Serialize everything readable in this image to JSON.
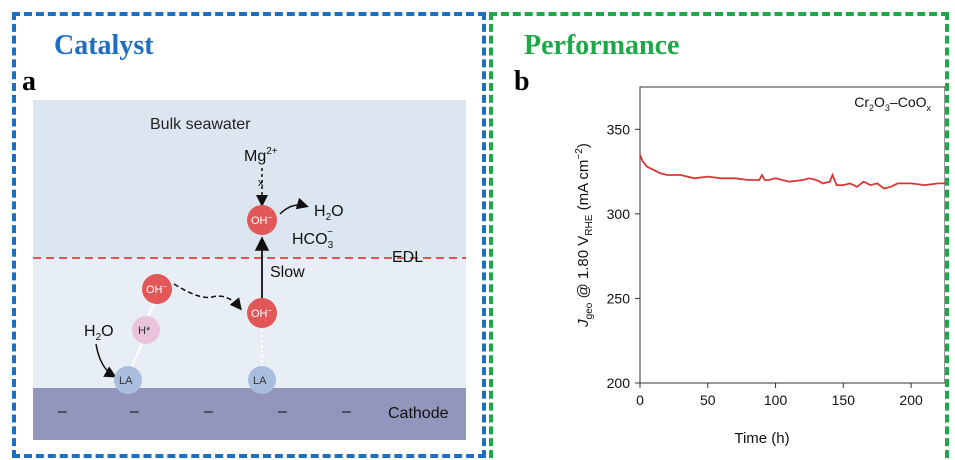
{
  "colors": {
    "catalyst_border": "#1f6fc0",
    "performance_border": "#1fa84a",
    "seawater_bg": "#dce6f0",
    "edl_bg": "#e8eef5",
    "cathode_fill": "#9296bd",
    "oh_ball": "#e25757",
    "h_ball": "#e9c2dc",
    "la_ball": "#a9bedf",
    "edl_line": "#e05555",
    "line_series": "#d63838"
  },
  "catalyst": {
    "heading": "Catalyst",
    "letter": "a",
    "bulk_label": "Bulk seawater",
    "mg_label": "Mg",
    "mg_sup": "2+",
    "blocked_mark": "x",
    "oh_label": "OH",
    "oh_sup": "−",
    "h2o_product": "H",
    "h2o_product_sub": "2",
    "h2o_product_tail": "O",
    "hco3_base": "HCO",
    "hco3_sub": "3",
    "hco3_sup": "−",
    "edl_label": "EDL",
    "slow_label": "Slow",
    "h2o_reactant": "H",
    "h2o_reactant_sub": "2",
    "h2o_reactant_tail": "O",
    "h_label": "H*",
    "la_label": "LA",
    "cathode_label": "Cathode",
    "minus_sign": "–"
  },
  "performance": {
    "heading": "Performance",
    "letter": "b"
  },
  "chart_data": {
    "type": "line",
    "legend_label_parts": [
      "Cr",
      "2",
      "O",
      "3",
      "–CoO",
      "x"
    ],
    "xlabel": "Time (h)",
    "ylabel_parts": [
      "J",
      "geo",
      " @ 1.80 V",
      "RHE",
      " (mA cm",
      "−2",
      ")"
    ],
    "xlim": [
      0,
      225
    ],
    "ylim": [
      200,
      375
    ],
    "xticks": [
      0,
      50,
      100,
      150,
      200
    ],
    "yticks": [
      200,
      250,
      300,
      350
    ],
    "xtick_labels": [
      "0",
      "50",
      "100",
      "150",
      "200"
    ],
    "ytick_labels": [
      "200",
      "250",
      "300",
      "350"
    ],
    "series": [
      {
        "x": [
          0,
          2,
          5,
          10,
          15,
          20,
          30,
          40,
          50,
          60,
          70,
          80,
          88,
          90,
          92,
          95,
          100,
          110,
          120,
          125,
          130,
          135,
          140,
          142,
          145,
          150,
          155,
          160,
          165,
          170,
          175,
          180,
          185,
          190,
          200,
          210,
          220,
          225
        ],
        "y": [
          335,
          331,
          328,
          326,
          324,
          323,
          323,
          321,
          322,
          321,
          321,
          320,
          320,
          323,
          320,
          320,
          321,
          319,
          320,
          321,
          320,
          318,
          319,
          323,
          317,
          317,
          318,
          316,
          319,
          317,
          318,
          315,
          316,
          318,
          318,
          317,
          318,
          318
        ]
      }
    ]
  }
}
